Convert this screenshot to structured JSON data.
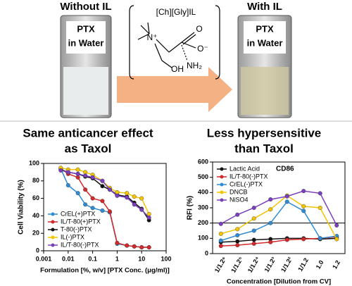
{
  "header": {
    "left_label": "Without IL",
    "right_label": "With IL",
    "vial_text": [
      "PTX",
      "in Water"
    ],
    "structure": {
      "name": "[Ch][Gly]IL",
      "atoms": [
        "N⁺",
        "O",
        "O⁻",
        "OH",
        "NH₂"
      ]
    }
  },
  "chart_data": [
    {
      "type": "line",
      "title": [
        "Same anticancer effect",
        "as Taxol"
      ],
      "x_label": "Formulation [%, w/v] [PTX Conc. (μg/ml)]",
      "y_label": "Cell Viability (%)",
      "xscale": "log",
      "xlim": [
        0.001,
        100
      ],
      "xticks": [
        0.001,
        0.01,
        0.1,
        1,
        10,
        100
      ],
      "ylim": [
        0,
        100
      ],
      "yticks": [
        0,
        20,
        40,
        60,
        80,
        100
      ],
      "legend": "lower left",
      "x": [
        0.005,
        0.01,
        0.025,
        0.05,
        0.1,
        0.25,
        0.5,
        1,
        2.5,
        5,
        10,
        20
      ],
      "series": [
        {
          "name": "CrEL(+)PTX",
          "color": "#2e8bd6",
          "values": [
            94,
            75,
            66,
            53,
            49,
            46,
            44,
            8,
            6,
            5,
            4,
            4
          ]
        },
        {
          "name": "IL/T-80(+)PTX",
          "color": "#d62728",
          "values": [
            94,
            88,
            84,
            70,
            60,
            57,
            45,
            9,
            6,
            5,
            4,
            4
          ]
        },
        {
          "name": "T-80(-)PTX",
          "color": "#111111",
          "values": [
            93,
            90,
            88,
            85,
            83,
            74,
            70,
            64,
            62,
            55,
            48,
            35
          ]
        },
        {
          "name": "IL(-)PTX",
          "color": "#f5c400",
          "values": [
            95,
            93,
            93,
            90,
            87,
            80,
            72,
            67,
            66,
            62,
            60,
            42
          ]
        },
        {
          "name": "IL/T-80(-)PTX",
          "color": "#7a3fbf",
          "values": [
            92,
            90,
            88,
            86,
            84,
            80,
            70,
            63,
            61,
            53,
            47,
            38
          ]
        }
      ]
    },
    {
      "type": "line",
      "title": [
        "Less hypersensitive",
        "than Taxol"
      ],
      "x_label": "Concentration [Dilution from CV]",
      "y_label": "RFI (%)",
      "annotation": "CD86",
      "categories": [
        "1/1.2⁶",
        "1/1.2⁵",
        "1/1.2⁴",
        "1/1.2³",
        "1/1.2²",
        "1/1.2",
        "1.0",
        "1.2"
      ],
      "ylim": [
        0,
        600
      ],
      "yticks": [
        0,
        100,
        200,
        300,
        400,
        500,
        600
      ],
      "reference_line": 200,
      "legend": "upper left",
      "series": [
        {
          "name": "Lactic Acid",
          "color": "#111111",
          "values": [
            75,
            80,
            90,
            95,
            100,
            100,
            95,
            100
          ]
        },
        {
          "name": "IL/T-80(-)PTX",
          "color": "#d62728",
          "values": [
            50,
            55,
            65,
            75,
            90,
            95,
            100,
            110
          ]
        },
        {
          "name": "CrEL(-)PTX",
          "color": "#2e8bd6",
          "values": [
            85,
            120,
            150,
            200,
            340,
            280,
            100,
            115
          ]
        },
        {
          "name": "DNCB",
          "color": "#f5c400",
          "values": [
            130,
            160,
            230,
            290,
            380,
            310,
            300,
            95
          ]
        },
        {
          "name": "NiSO4",
          "color": "#7a3fbf",
          "values": [
            195,
            255,
            300,
            355,
            375,
            410,
            395,
            185
          ]
        }
      ]
    }
  ]
}
